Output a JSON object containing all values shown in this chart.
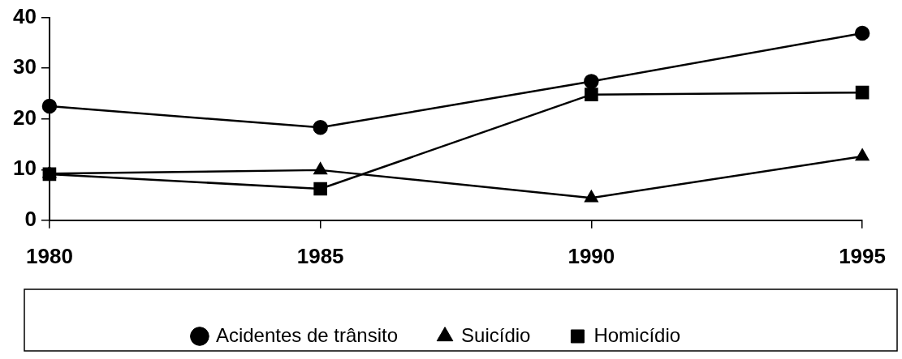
{
  "chart_data": {
    "type": "line",
    "categories": [
      "1980",
      "1985",
      "1990",
      "1995"
    ],
    "series": [
      {
        "name": "Acidentes de trânsito",
        "color": "#000000",
        "marker": "circle",
        "values": [
          22.5,
          18.3,
          27.4,
          36.9
        ]
      },
      {
        "name": "Suicídio",
        "color": "#000000",
        "marker": "triangle",
        "values": [
          9.2,
          9.9,
          4.4,
          12.6
        ]
      },
      {
        "name": "Homicídio",
        "color": "#000000",
        "marker": "square",
        "values": [
          9.1,
          6.2,
          24.8,
          25.2
        ]
      }
    ],
    "ylim": [
      0,
      40
    ],
    "yticks": [
      0,
      10,
      20,
      30,
      40
    ],
    "grid": false,
    "legend": "bottom",
    "line_style": "solid"
  }
}
